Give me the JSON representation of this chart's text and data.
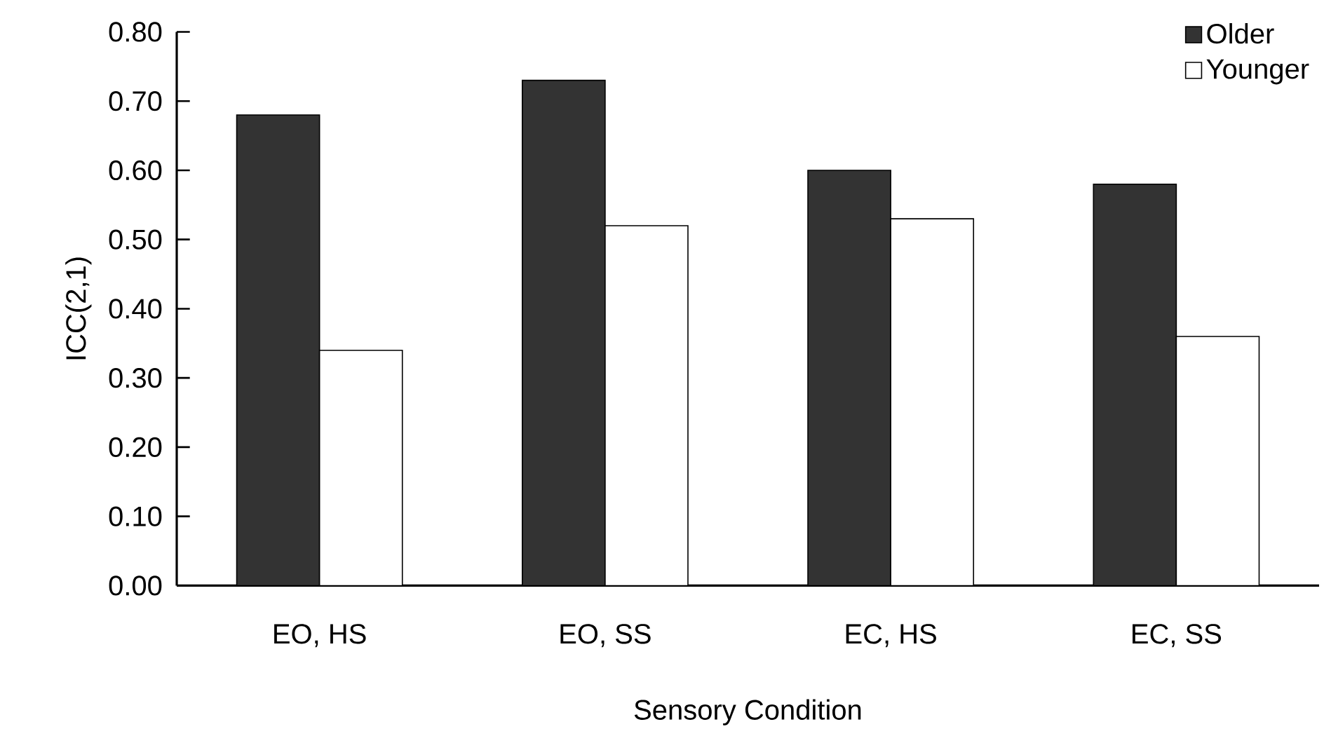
{
  "chart_data": {
    "type": "bar",
    "xlabel": "Sensory Condition",
    "ylabel": "ICC(2,1)",
    "categories": [
      "EO, HS",
      "EO, SS",
      "EC, HS",
      "EC, SS"
    ],
    "series": [
      {
        "name": "Older",
        "color": "#333333",
        "values": [
          0.68,
          0.73,
          0.6,
          0.58
        ]
      },
      {
        "name": "Younger",
        "color": "#ffffff",
        "values": [
          0.34,
          0.52,
          0.53,
          0.36
        ]
      }
    ],
    "ylim": [
      0,
      0.8
    ],
    "yticks": [
      {
        "value": 0,
        "label": "0.00"
      },
      {
        "value": 0.1,
        "label": "0.10"
      },
      {
        "value": 0.2,
        "label": "0.20"
      },
      {
        "value": 0.3,
        "label": "0.30"
      },
      {
        "value": 0.4,
        "label": "0.40"
      },
      {
        "value": 0.5,
        "label": "0.50"
      },
      {
        "value": 0.6,
        "label": "0.60"
      },
      {
        "value": 0.7,
        "label": "0.70"
      },
      {
        "value": 0.8,
        "label": "0.80"
      }
    ],
    "grid": false,
    "legend": "top right"
  }
}
